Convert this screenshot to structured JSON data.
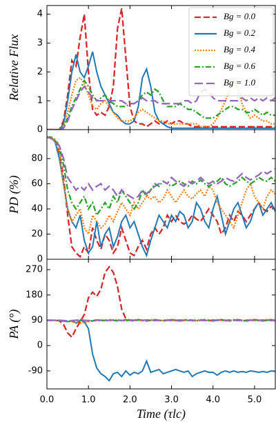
{
  "chart_data": [
    {
      "type": "line",
      "ylabel": "Relative Flux",
      "ylim": [
        0,
        4.3
      ],
      "yticks": [
        0,
        1,
        2,
        3,
        4
      ],
      "legend": "upper right",
      "x": [
        0,
        0.1,
        0.2,
        0.3,
        0.4,
        0.5,
        0.6,
        0.7,
        0.8,
        0.9,
        1.0,
        1.1,
        1.2,
        1.3,
        1.4,
        1.5,
        1.6,
        1.7,
        1.8,
        1.9,
        2.0,
        2.1,
        2.2,
        2.3,
        2.4,
        2.5,
        2.6,
        2.7,
        2.8,
        2.9,
        3.0,
        3.1,
        3.2,
        3.3,
        3.4,
        3.5,
        3.6,
        3.7,
        3.8,
        3.9,
        4.0,
        4.1,
        4.2,
        4.3,
        4.4,
        4.5,
        4.6,
        4.7,
        4.8,
        4.9,
        5.0,
        5.1,
        5.2,
        5.3,
        5.4,
        5.5
      ],
      "series": [
        {
          "name": "Bg = 0.0",
          "color": "#d62728",
          "linestyle": "dashed",
          "values": [
            0,
            0,
            0,
            0,
            0.3,
            1.2,
            2.4,
            2.2,
            3.2,
            4.0,
            2.0,
            0.7,
            0.5,
            0.6,
            0.5,
            0.8,
            1.5,
            3.5,
            4.2,
            2.5,
            0.8,
            0.3,
            0.2,
            0.2,
            0.1,
            0.2,
            0.3,
            0.2,
            0.2,
            0.3,
            0.2,
            0.3,
            0.3,
            0.2,
            0.2,
            0.1,
            0.1,
            0.1,
            0.1,
            0.1,
            0.1,
            0.1,
            0.1,
            0.1,
            0.1,
            0.1,
            0.1,
            0.1,
            0.1,
            0.1,
            0.1,
            0.1,
            0.1,
            0.1,
            0.1,
            0.1
          ]
        },
        {
          "name": "Bg = 0.2",
          "color": "#1f77b4",
          "linestyle": "solid",
          "values": [
            0,
            0,
            0,
            0,
            0.2,
            1.0,
            2.0,
            2.6,
            2.0,
            1.8,
            2.2,
            2.7,
            2.0,
            1.5,
            1.2,
            0.9,
            0.6,
            0.5,
            0.3,
            0.2,
            0.2,
            0.3,
            0.8,
            1.8,
            2.1,
            1.5,
            0.6,
            0.3,
            0.2,
            0.1,
            0.05,
            0.05,
            0.05,
            0.05,
            0.05,
            0.05,
            0.05,
            0.05,
            0.05,
            0.05,
            0.05,
            0.05,
            0.05,
            0.05,
            0.05,
            0.05,
            0.05,
            0.05,
            0.05,
            0.05,
            0.05,
            0.05,
            0.05,
            0.05,
            0.05,
            0.05
          ]
        },
        {
          "name": "Bg = 0.4",
          "color": "#ff7f0e",
          "linestyle": "dotted",
          "values": [
            0,
            0,
            0,
            0,
            0.1,
            0.6,
            1.2,
            1.7,
            1.8,
            1.6,
            1.2,
            0.8,
            0.7,
            0.9,
            1.0,
            0.8,
            0.6,
            0.4,
            0.3,
            0.3,
            0.3,
            0.4,
            0.6,
            0.7,
            0.6,
            0.5,
            0.4,
            0.3,
            0.3,
            0.2,
            0.2,
            0.2,
            0.2,
            0.2,
            0.2,
            0.2,
            0.2,
            0.1,
            0.1,
            0.1,
            0.2,
            0.4,
            0.7,
            1.0,
            1.4,
            1.7,
            1.4,
            0.9,
            0.6,
            0.4,
            0.5,
            0.4,
            0.3,
            0.3,
            0.2,
            0.2
          ]
        },
        {
          "name": "Bg = 0.6",
          "color": "#2ca02c",
          "linestyle": "dashdot",
          "values": [
            0,
            0,
            0,
            0,
            0.1,
            0.4,
            0.8,
            1.1,
            1.4,
            1.7,
            1.5,
            1.2,
            1.0,
            1.1,
            1.2,
            1.0,
            0.9,
            0.8,
            0.8,
            0.8,
            0.9,
            0.9,
            1.0,
            1.2,
            1.3,
            1.2,
            1.4,
            1.3,
            1.0,
            0.8,
            0.8,
            0.8,
            0.9,
            0.8,
            0.7,
            0.7,
            0.6,
            0.5,
            0.4,
            0.4,
            0.4,
            0.5,
            0.6,
            0.7,
            0.8,
            0.8,
            0.7,
            0.7,
            0.6,
            0.6,
            0.7,
            0.6,
            0.5,
            0.6,
            0.5,
            0.5
          ]
        },
        {
          "name": "Bg = 1.0",
          "color": "#9467bd",
          "linestyle": "longdash",
          "values": [
            0,
            0,
            0,
            0,
            0.05,
            0.3,
            0.7,
            1.0,
            1.3,
            1.5,
            1.3,
            1.1,
            1.0,
            1.0,
            1.0,
            1.0,
            1.0,
            1.0,
            1.0,
            0.9,
            0.9,
            0.9,
            1.0,
            1.1,
            1.0,
            1.0,
            1.0,
            0.9,
            0.9,
            0.9,
            0.9,
            0.9,
            0.9,
            1.0,
            1.0,
            0.9,
            1.0,
            1.3,
            1.4,
            1.3,
            1.1,
            1.0,
            1.0,
            1.0,
            1.0,
            1.0,
            1.0,
            1.1,
            1.0,
            1.1,
            1.0,
            1.1,
            1.0,
            1.1,
            1.0,
            1.1
          ]
        }
      ]
    },
    {
      "type": "line",
      "ylabel": "PD (%)",
      "ylim": [
        0,
        103
      ],
      "yticks": [
        0,
        20,
        40,
        60,
        80
      ],
      "x": [
        0,
        0.1,
        0.2,
        0.3,
        0.4,
        0.5,
        0.6,
        0.7,
        0.8,
        0.9,
        1.0,
        1.1,
        1.2,
        1.3,
        1.4,
        1.5,
        1.6,
        1.7,
        1.8,
        1.9,
        2.0,
        2.1,
        2.2,
        2.3,
        2.4,
        2.5,
        2.6,
        2.7,
        2.8,
        2.9,
        3.0,
        3.1,
        3.2,
        3.3,
        3.4,
        3.5,
        3.6,
        3.7,
        3.8,
        3.9,
        4.0,
        4.1,
        4.2,
        4.3,
        4.4,
        4.5,
        4.6,
        4.7,
        4.8,
        4.9,
        5.0,
        5.1,
        5.2,
        5.3,
        5.4,
        5.5
      ],
      "series": [
        {
          "color": "#d62728",
          "linestyle": "dashed",
          "values": [
            97,
            97,
            94,
            85,
            65,
            35,
            10,
            5,
            2,
            10,
            5,
            25,
            15,
            8,
            20,
            15,
            5,
            10,
            25,
            15,
            5,
            3,
            10,
            15,
            8,
            20,
            25,
            20,
            25,
            35,
            30,
            35,
            30,
            28,
            30,
            35,
            32,
            30,
            35,
            40,
            35,
            30,
            20,
            25,
            35,
            30,
            38,
            35,
            30,
            35,
            40,
            45,
            40,
            38,
            42,
            40
          ]
        },
        {
          "color": "#1f77b4",
          "linestyle": "solid",
          "values": [
            97,
            97,
            93,
            80,
            60,
            40,
            30,
            25,
            35,
            15,
            5,
            10,
            30,
            10,
            20,
            25,
            10,
            18,
            30,
            35,
            25,
            30,
            20,
            10,
            3,
            15,
            25,
            35,
            30,
            25,
            35,
            30,
            38,
            35,
            25,
            30,
            45,
            40,
            30,
            25,
            40,
            50,
            35,
            20,
            30,
            40,
            45,
            35,
            25,
            30,
            40,
            45,
            35,
            40,
            45,
            38
          ]
        },
        {
          "color": "#ff7f0e",
          "linestyle": "dotted",
          "values": [
            97,
            97,
            94,
            85,
            60,
            40,
            30,
            35,
            40,
            25,
            20,
            35,
            30,
            25,
            28,
            35,
            30,
            38,
            45,
            40,
            35,
            45,
            40,
            45,
            50,
            48,
            50,
            45,
            48,
            55,
            50,
            45,
            50,
            55,
            50,
            48,
            52,
            55,
            50,
            58,
            55,
            45,
            40,
            35,
            30,
            25,
            35,
            45,
            55,
            60,
            50,
            45,
            40,
            50,
            55,
            52
          ]
        },
        {
          "color": "#2ca02c",
          "linestyle": "dashdot",
          "values": [
            97,
            97,
            95,
            90,
            75,
            55,
            45,
            40,
            45,
            50,
            40,
            45,
            35,
            40,
            45,
            40,
            50,
            45,
            55,
            50,
            45,
            40,
            45,
            55,
            50,
            55,
            60,
            58,
            62,
            60,
            58,
            60,
            62,
            60,
            58,
            62,
            60,
            63,
            60,
            58,
            60,
            62,
            65,
            60,
            58,
            60,
            62,
            65,
            62,
            60,
            62,
            65,
            63,
            62,
            65,
            62
          ]
        },
        {
          "color": "#9467bd",
          "linestyle": "longdash",
          "values": [
            97,
            96,
            94,
            90,
            80,
            65,
            60,
            55,
            58,
            55,
            60,
            55,
            58,
            60,
            55,
            58,
            55,
            50,
            55,
            52,
            50,
            48,
            50,
            55,
            52,
            55,
            58,
            60,
            62,
            60,
            65,
            62,
            60,
            58,
            62,
            60,
            62,
            65,
            62,
            60,
            62,
            60,
            62,
            65,
            63,
            62,
            65,
            68,
            65,
            63,
            65,
            67,
            70,
            68,
            70,
            72
          ]
        }
      ]
    },
    {
      "type": "line",
      "ylabel": "PA (°)",
      "xlabel": "Time (τlc)",
      "xlim": [
        0,
        5.5
      ],
      "ylim": [
        -154,
        307
      ],
      "yticks": [
        -90,
        0,
        90,
        180,
        270
      ],
      "xticks": [
        {
          "value": 0,
          "label": "0.0"
        },
        {
          "value": 1,
          "label": "1.0"
        },
        {
          "value": 2,
          "label": "2.0"
        },
        {
          "value": 3,
          "label": "3.0"
        },
        {
          "value": 4,
          "label": "4.0"
        },
        {
          "value": 5,
          "label": "5.0"
        }
      ],
      "x": [
        0,
        0.1,
        0.2,
        0.3,
        0.4,
        0.5,
        0.6,
        0.7,
        0.8,
        0.9,
        1.0,
        1.1,
        1.2,
        1.3,
        1.4,
        1.5,
        1.6,
        1.7,
        1.8,
        1.9,
        2.0,
        2.1,
        2.2,
        2.3,
        2.4,
        2.5,
        2.6,
        2.7,
        2.8,
        2.9,
        3.0,
        3.1,
        3.2,
        3.3,
        3.4,
        3.5,
        3.6,
        3.7,
        3.8,
        3.9,
        4.0,
        4.1,
        4.2,
        4.3,
        4.4,
        4.5,
        4.6,
        4.7,
        4.8,
        4.9,
        5.0,
        5.1,
        5.2,
        5.3,
        5.4,
        5.5
      ],
      "series": [
        {
          "color": "#d62728",
          "linestyle": "dashed",
          "values": [
            90,
            90,
            90,
            88,
            75,
            45,
            30,
            60,
            85,
            110,
            170,
            190,
            175,
            200,
            260,
            280,
            260,
            210,
            130,
            95,
            90,
            88,
            92,
            90,
            88,
            90,
            92,
            90,
            88,
            90,
            92,
            90,
            88,
            90,
            92,
            90,
            88,
            90,
            92,
            90,
            88,
            90,
            92,
            90,
            88,
            90,
            92,
            90,
            88,
            90,
            92,
            90,
            88,
            90,
            92,
            88
          ]
        },
        {
          "color": "#1f77b4",
          "linestyle": "solid",
          "values": [
            90,
            90,
            90,
            88,
            87,
            85,
            88,
            80,
            90,
            85,
            60,
            -30,
            -80,
            -100,
            -110,
            -125,
            -100,
            -95,
            -110,
            -90,
            -105,
            -95,
            -100,
            -90,
            -55,
            -95,
            -90,
            -85,
            -100,
            -95,
            -90,
            -85,
            -90,
            -95,
            -90,
            -110,
            -100,
            -95,
            -90,
            -95,
            -95,
            -105,
            -95,
            -90,
            -95,
            -90,
            -95,
            -92,
            -95,
            -90,
            -92,
            -95,
            -92,
            -95,
            -90,
            -92
          ]
        },
        {
          "color": "#ff7f0e",
          "linestyle": "dotted",
          "values": [
            90,
            90,
            90,
            89,
            88,
            87,
            85,
            82,
            80,
            82,
            85,
            88,
            90,
            92,
            90,
            88,
            90,
            92,
            90,
            88,
            90,
            92,
            90,
            88,
            90,
            92,
            90,
            88,
            90,
            92,
            90,
            88,
            90,
            92,
            90,
            88,
            90,
            92,
            90,
            88,
            90,
            92,
            90,
            88,
            90,
            92,
            90,
            88,
            90,
            92,
            90,
            88,
            90,
            92,
            90,
            88
          ]
        },
        {
          "color": "#2ca02c",
          "linestyle": "dashdot",
          "values": [
            90,
            90,
            90,
            90,
            88,
            86,
            88,
            90,
            92,
            88,
            86,
            88,
            90,
            88,
            90,
            92,
            90,
            88,
            90,
            92,
            88,
            90,
            92,
            90,
            88,
            90,
            92,
            90,
            88,
            90,
            92,
            90,
            88,
            90,
            92,
            90,
            88,
            90,
            92,
            90,
            88,
            90,
            92,
            90,
            88,
            90,
            92,
            90,
            88,
            90,
            92,
            90,
            88,
            90,
            92,
            90
          ]
        },
        {
          "color": "#9467bd",
          "linestyle": "longdash",
          "values": [
            90,
            90,
            90,
            90,
            89,
            88,
            89,
            90,
            91,
            90,
            89,
            90,
            91,
            90,
            89,
            90,
            91,
            90,
            89,
            90,
            91,
            90,
            89,
            90,
            91,
            90,
            89,
            90,
            91,
            90,
            89,
            90,
            91,
            90,
            89,
            90,
            91,
            90,
            89,
            90,
            91,
            90,
            89,
            90,
            91,
            90,
            89,
            90,
            91,
            90,
            89,
            90,
            91,
            90,
            89,
            90
          ]
        }
      ]
    }
  ]
}
